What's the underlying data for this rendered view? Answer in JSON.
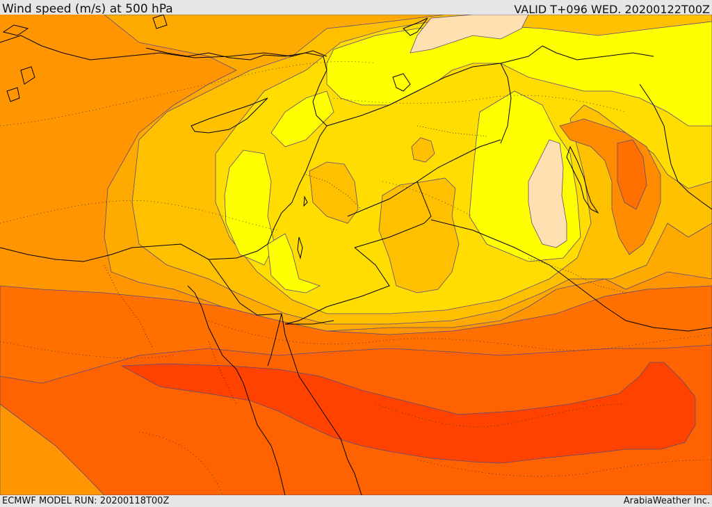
{
  "header": {
    "title": "Wind speed (m/s) at 500 hPa",
    "valid_time": "VALID T+096 WED. 20200122T00Z"
  },
  "footer": {
    "model_run": "ECMWF MODEL RUN: 20200118T00Z",
    "credit": "ArabiaWeather Inc."
  },
  "colors": {
    "band_orange": "#ff9500",
    "band_light_orange": "#ffaa00",
    "band_gold": "#ffc000",
    "band_yellow_gold": "#ffdd00",
    "band_yellow": "#ffff00",
    "band_peach": "#ffe0b0",
    "band_dark_orange": "#ff7000",
    "band_red_orange": "#ff6200",
    "band_jet_core": "#ff4000",
    "coastline": "#000000",
    "contour": "#5a4a7a"
  }
}
